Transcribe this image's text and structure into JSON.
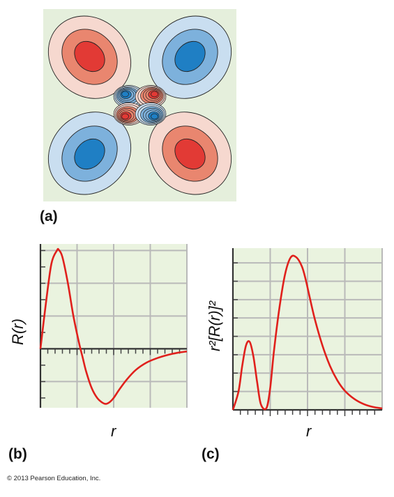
{
  "panels": {
    "a": {
      "label": "(a)"
    },
    "b": {
      "label": "(b)"
    },
    "c": {
      "label": "(c)"
    }
  },
  "copyright": "© 2013 Pearson Education, Inc.",
  "colors": {
    "plot_bg": "#eaf3df",
    "grid": "#b9b9b9",
    "curve": "#e0201c",
    "contour_bg": "#e5efdc",
    "pos_dark": "#e23a35",
    "pos_mid": "#e9866f",
    "pos_light": "#f6d8cf",
    "neg_dark": "#1f7fc4",
    "neg_mid": "#7db1dc",
    "neg_light": "#c9def0"
  },
  "chart_data": [
    {
      "type": "heatmap",
      "panel": "(a)",
      "description_of_content": "",
      "lobes": [
        {
          "quadrant": "top-left",
          "sign": "positive"
        },
        {
          "quadrant": "top-right",
          "sign": "negative"
        },
        {
          "quadrant": "bottom-left",
          "sign": "negative"
        },
        {
          "quadrant": "bottom-right",
          "sign": "positive"
        },
        {
          "quadrant": "inner-top-left",
          "sign": "negative"
        },
        {
          "quadrant": "inner-top-right",
          "sign": "positive"
        },
        {
          "quadrant": "inner-bottom-left",
          "sign": "positive"
        },
        {
          "quadrant": "inner-bottom-right",
          "sign": "negative"
        }
      ]
    },
    {
      "type": "line",
      "panel": "(b)",
      "xlabel": "r",
      "ylabel": "R(r)",
      "xlim": [
        0,
        8
      ],
      "ylim": [
        -1.8,
        3.2
      ],
      "grid": true,
      "x": [
        0,
        0.3,
        0.6,
        0.9,
        1.0,
        1.2,
        1.5,
        1.8,
        2.1,
        2.3,
        2.5,
        2.8,
        3.1,
        3.4,
        3.6,
        3.8,
        4.0,
        4.3,
        4.7,
        5.2,
        5.8,
        6.4,
        7.0,
        7.5,
        8.0
      ],
      "y": [
        0,
        1.4,
        2.6,
        3.0,
        3.02,
        2.8,
        2.0,
        1.0,
        0.2,
        -0.25,
        -0.7,
        -1.2,
        -1.5,
        -1.65,
        -1.68,
        -1.62,
        -1.5,
        -1.25,
        -0.95,
        -0.65,
        -0.42,
        -0.28,
        -0.18,
        -0.12,
        -0.08
      ]
    },
    {
      "type": "line",
      "panel": "(c)",
      "xlabel": "r",
      "ylabel": "r²[R(r)]²",
      "xlim": [
        0,
        8
      ],
      "ylim": [
        0,
        4.4
      ],
      "grid": true,
      "x": [
        0,
        0.3,
        0.5,
        0.7,
        0.9,
        1.1,
        1.3,
        1.5,
        1.8,
        2.0,
        2.2,
        2.5,
        2.8,
        3.1,
        3.4,
        3.7,
        3.9,
        4.1,
        4.4,
        4.8,
        5.2,
        5.6,
        6.0,
        6.5,
        7.0,
        7.5,
        8.0
      ],
      "y": [
        0,
        0.5,
        1.2,
        1.75,
        1.85,
        1.45,
        0.75,
        0.15,
        0.05,
        0.6,
        1.6,
        2.8,
        3.7,
        4.15,
        4.15,
        3.9,
        3.55,
        3.1,
        2.45,
        1.75,
        1.2,
        0.8,
        0.52,
        0.3,
        0.16,
        0.08,
        0.04
      ]
    }
  ]
}
